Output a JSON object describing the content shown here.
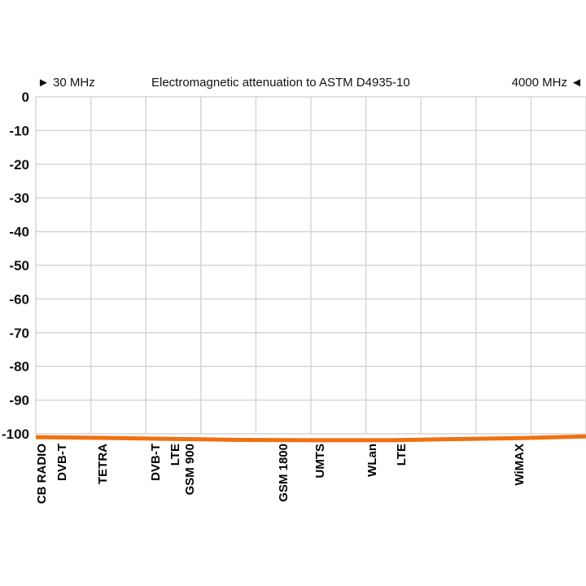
{
  "header": {
    "left": "► 30 MHz",
    "title": "Electromagnetic attenuation to ASTM D4935-10",
    "right": "4000 MHz ◄"
  },
  "chart_data": {
    "type": "line",
    "title": "Electromagnetic attenuation to ASTM D4935-10",
    "xlabel": "",
    "ylabel": "",
    "xlim": [
      30,
      4000
    ],
    "ylim": [
      -100,
      0
    ],
    "grid": true,
    "y_ticks": [
      0,
      -10,
      -20,
      -30,
      -40,
      -50,
      -60,
      -70,
      -80,
      -90,
      -100
    ],
    "bands": [
      {
        "label": "CB RADIO",
        "mhz": 27
      },
      {
        "label": "DVB-T",
        "mhz": 200
      },
      {
        "label": "TETRA",
        "mhz": 400
      },
      {
        "label": "DVB-T",
        "mhz": 800
      },
      {
        "label": "LTE",
        "mhz": 850
      },
      {
        "label": "GSM 900",
        "mhz": 900
      },
      {
        "label": "GSM 1800",
        "mhz": 1800
      },
      {
        "label": "UMTS",
        "mhz": 2100
      },
      {
        "label": "WLan",
        "mhz": 2400
      },
      {
        "label": "LTE",
        "mhz": 2600
      },
      {
        "label": "WiMAX",
        "mhz": 3500
      }
    ],
    "series": [
      {
        "color": "#f07010",
        "x": [
          30,
          500,
          1000,
          1500,
          2000,
          2600,
          3000,
          3500,
          4000
        ],
        "y": [
          -101.0,
          -101.2,
          -101.5,
          -101.8,
          -101.9,
          -101.9,
          -101.6,
          -101.3,
          -100.8
        ]
      }
    ]
  }
}
